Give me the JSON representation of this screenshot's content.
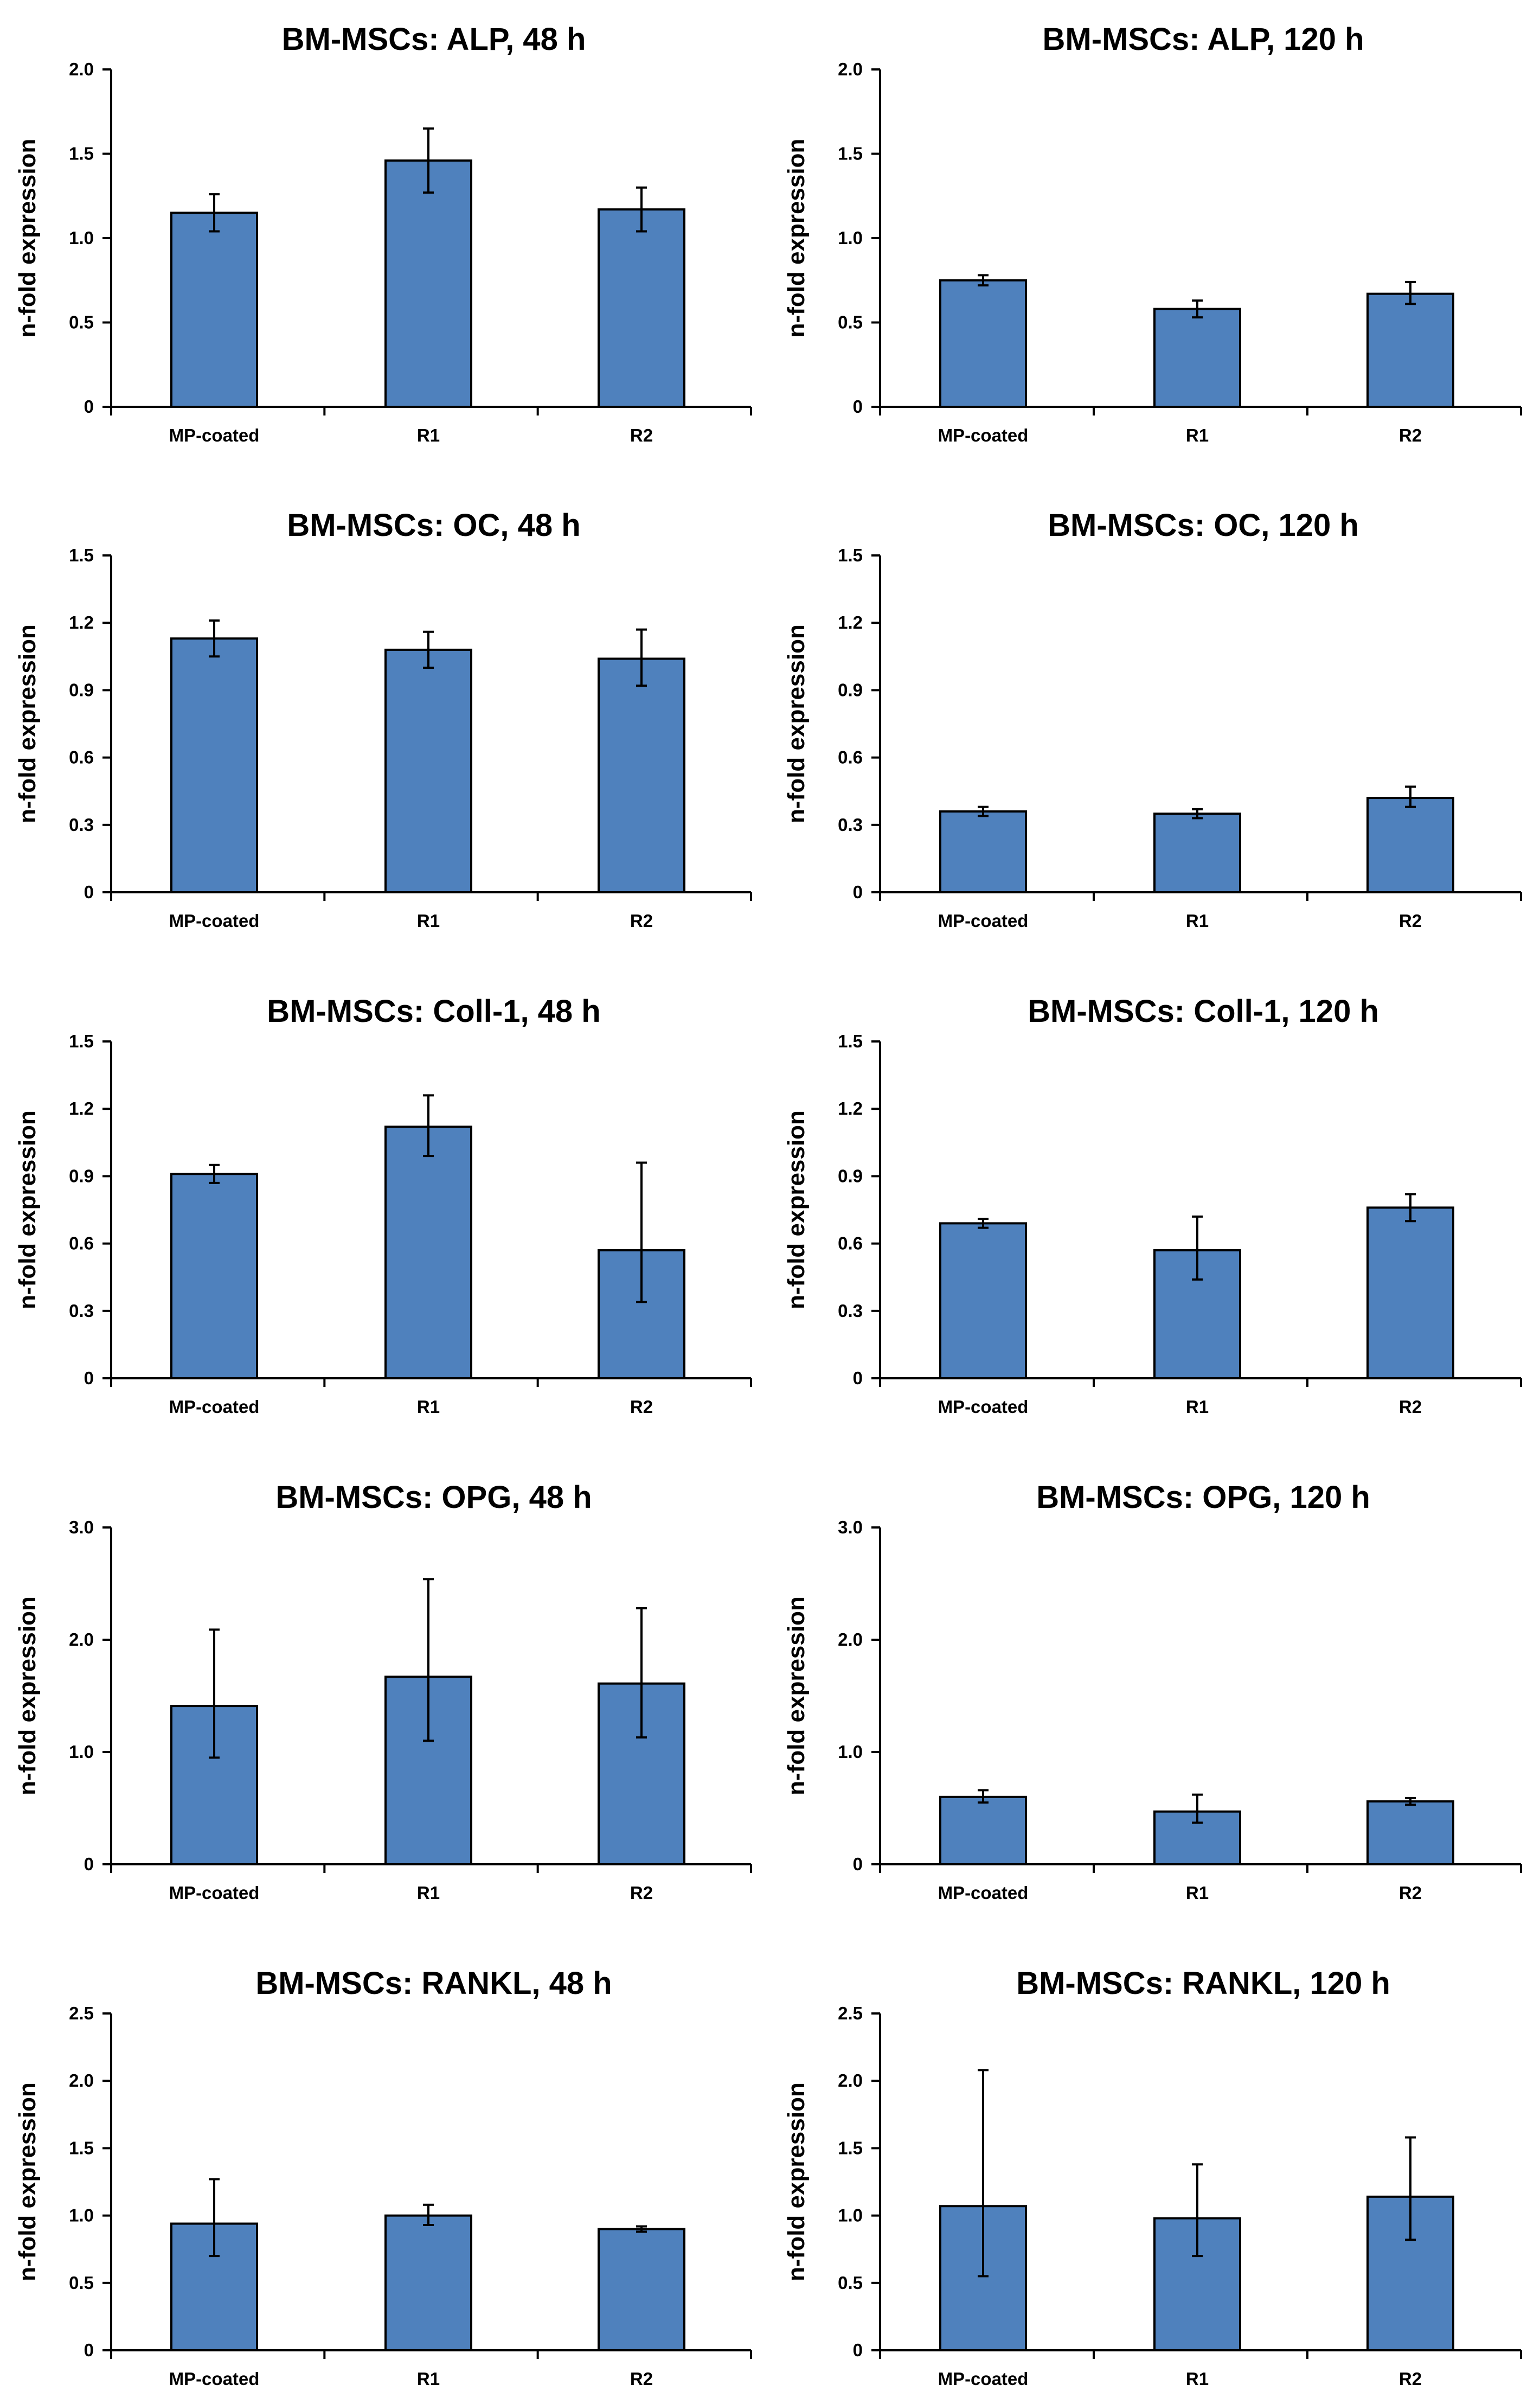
{
  "chart_data": [
    {
      "type": "bar",
      "title": "BM-MSCs: ALP, 48 h",
      "ylabel": "n-fold expression",
      "categories": [
        "MP-coated",
        "R1",
        "R2"
      ],
      "values": [
        1.15,
        1.46,
        1.17
      ],
      "error_low": [
        1.04,
        1.27,
        1.04
      ],
      "error_high": [
        1.26,
        1.65,
        1.3
      ],
      "ylim": [
        0,
        2.0
      ],
      "yticks": [
        "0",
        "0.5",
        "1.0",
        "1.5",
        "2.0"
      ]
    },
    {
      "type": "bar",
      "title": "BM-MSCs: ALP, 120 h",
      "ylabel": "n-fold expression",
      "categories": [
        "MP-coated",
        "R1",
        "R2"
      ],
      "values": [
        0.75,
        0.58,
        0.67
      ],
      "error_low": [
        0.72,
        0.53,
        0.61
      ],
      "error_high": [
        0.78,
        0.63,
        0.74
      ],
      "ylim": [
        0,
        2.0
      ],
      "yticks": [
        "0",
        "0.5",
        "1.0",
        "1.5",
        "2.0"
      ]
    },
    {
      "type": "bar",
      "title": "BM-MSCs: OC, 48 h",
      "ylabel": "n-fold expression",
      "categories": [
        "MP-coated",
        "R1",
        "R2"
      ],
      "values": [
        1.13,
        1.08,
        1.04
      ],
      "error_low": [
        1.05,
        1.0,
        0.92
      ],
      "error_high": [
        1.21,
        1.16,
        1.17
      ],
      "ylim": [
        0,
        1.5
      ],
      "yticks": [
        "0",
        "0.3",
        "0.6",
        "0.9",
        "1.2",
        "1.5"
      ]
    },
    {
      "type": "bar",
      "title": "BM-MSCs: OC, 120 h",
      "ylabel": "n-fold expression",
      "categories": [
        "MP-coated",
        "R1",
        "R2"
      ],
      "values": [
        0.36,
        0.35,
        0.42
      ],
      "error_low": [
        0.34,
        0.33,
        0.38
      ],
      "error_high": [
        0.38,
        0.37,
        0.47
      ],
      "ylim": [
        0,
        1.5
      ],
      "yticks": [
        "0",
        "0.3",
        "0.6",
        "0.9",
        "1.2",
        "1.5"
      ]
    },
    {
      "type": "bar",
      "title": "BM-MSCs: Coll-1, 48 h",
      "ylabel": "n-fold expression",
      "categories": [
        "MP-coated",
        "R1",
        "R2"
      ],
      "values": [
        0.91,
        1.12,
        0.57
      ],
      "error_low": [
        0.87,
        0.99,
        0.34
      ],
      "error_high": [
        0.95,
        1.26,
        0.96
      ],
      "ylim": [
        0,
        1.5
      ],
      "yticks": [
        "0",
        "0.3",
        "0.6",
        "0.9",
        "1.2",
        "1.5"
      ]
    },
    {
      "type": "bar",
      "title": "BM-MSCs: Coll-1, 120 h",
      "ylabel": "n-fold expression",
      "categories": [
        "MP-coated",
        "R1",
        "R2"
      ],
      "values": [
        0.69,
        0.57,
        0.76
      ],
      "error_low": [
        0.67,
        0.44,
        0.7
      ],
      "error_high": [
        0.71,
        0.72,
        0.82
      ],
      "ylim": [
        0,
        1.5
      ],
      "yticks": [
        "0",
        "0.3",
        "0.6",
        "0.9",
        "1.2",
        "1.5"
      ]
    },
    {
      "type": "bar",
      "title": "BM-MSCs: OPG, 48 h",
      "ylabel": "n-fold expression",
      "categories": [
        "MP-coated",
        "R1",
        "R2"
      ],
      "values": [
        1.41,
        1.67,
        1.61
      ],
      "error_low": [
        0.95,
        1.1,
        1.13
      ],
      "error_high": [
        2.09,
        2.54,
        2.28
      ],
      "ylim": [
        0,
        3.0
      ],
      "yticks": [
        "0",
        "1.0",
        "2.0",
        "3.0"
      ]
    },
    {
      "type": "bar",
      "title": "BM-MSCs: OPG, 120 h",
      "ylabel": "n-fold expression",
      "categories": [
        "MP-coated",
        "R1",
        "R2"
      ],
      "values": [
        0.6,
        0.47,
        0.56
      ],
      "error_low": [
        0.55,
        0.37,
        0.53
      ],
      "error_high": [
        0.66,
        0.62,
        0.59
      ],
      "ylim": [
        0,
        3.0
      ],
      "yticks": [
        "0",
        "1.0",
        "2.0",
        "3.0"
      ]
    },
    {
      "type": "bar",
      "title": "BM-MSCs: RANKL, 48 h",
      "ylabel": "n-fold expression",
      "categories": [
        "MP-coated",
        "R1",
        "R2"
      ],
      "values": [
        0.94,
        1.0,
        0.9
      ],
      "error_low": [
        0.7,
        0.93,
        0.88
      ],
      "error_high": [
        1.27,
        1.08,
        0.92
      ],
      "ylim": [
        0,
        2.5
      ],
      "yticks": [
        "0",
        "0.5",
        "1.0",
        "1.5",
        "2.0",
        "2.5"
      ]
    },
    {
      "type": "bar",
      "title": "BM-MSCs: RANKL, 120 h",
      "ylabel": "n-fold expression",
      "categories": [
        "MP-coated",
        "R1",
        "R2"
      ],
      "values": [
        1.07,
        0.98,
        1.14
      ],
      "error_low": [
        0.55,
        0.7,
        0.82
      ],
      "error_high": [
        2.08,
        1.38,
        1.58
      ],
      "ylim": [
        0,
        2.5
      ],
      "yticks": [
        "0",
        "0.5",
        "1.0",
        "1.5",
        "2.0",
        "2.5"
      ]
    }
  ]
}
